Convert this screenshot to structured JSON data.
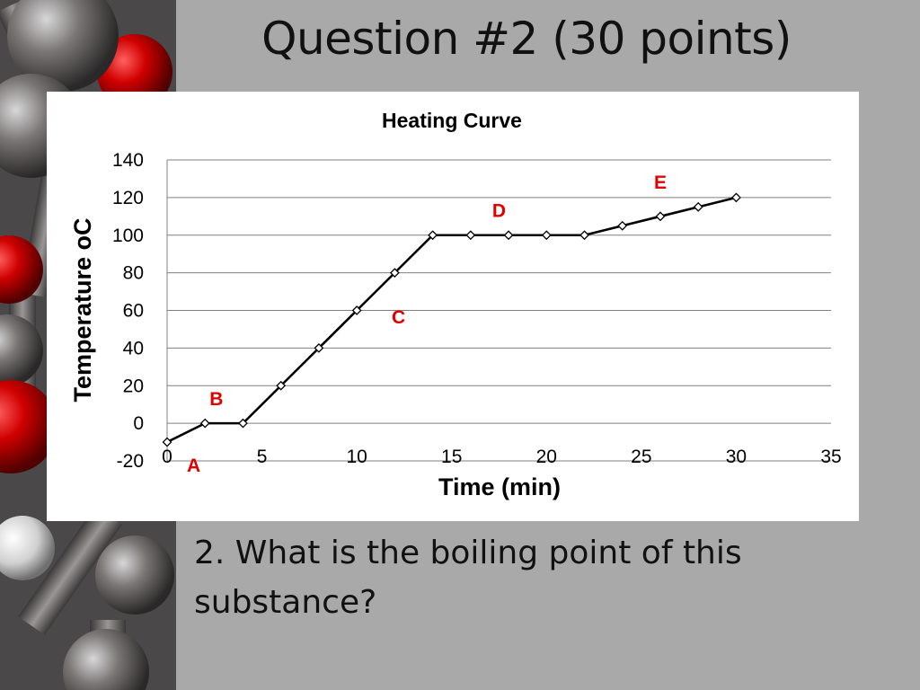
{
  "slide": {
    "title": "Question #2 (30 points)",
    "question": "2. What is the boiling point of this substance?"
  },
  "colors": {
    "background": "#a9a9a9",
    "panel": "#ffffff",
    "line": "#000000",
    "segment_label": "#e00000",
    "gridline": "#808080"
  },
  "chart_data": {
    "type": "line",
    "title": "Heating Curve",
    "xlabel": "Time (min)",
    "ylabel": "Temperature oC",
    "xlim": [
      0,
      35
    ],
    "ylim": [
      -20,
      140
    ],
    "x_ticks": [
      0,
      5,
      10,
      15,
      20,
      25,
      30,
      35
    ],
    "y_ticks": [
      -20,
      0,
      20,
      40,
      60,
      80,
      100,
      120,
      140
    ],
    "grid": "horizontal",
    "legend": "none",
    "marker": "diamond",
    "series": [
      {
        "x": [
          0,
          2,
          4,
          6,
          8,
          10,
          12,
          14,
          16,
          18,
          20,
          22,
          24,
          26,
          28,
          30
        ],
        "y": [
          -10,
          0,
          0,
          20,
          40,
          60,
          80,
          100,
          100,
          100,
          100,
          100,
          105,
          110,
          115,
          120
        ]
      }
    ],
    "annotations": [
      {
        "text": "A",
        "x": 1.4,
        "y": -22.5
      },
      {
        "text": "B",
        "x": 2.6,
        "y": 13
      },
      {
        "text": "C",
        "x": 12.2,
        "y": 56.5
      },
      {
        "text": "D",
        "x": 17.5,
        "y": 113
      },
      {
        "text": "E",
        "x": 26,
        "y": 128
      }
    ]
  }
}
